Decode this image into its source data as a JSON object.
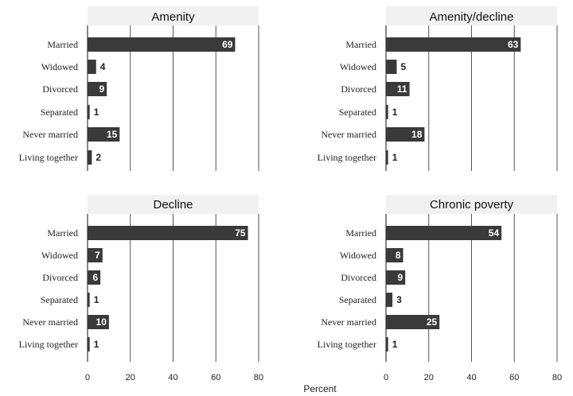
{
  "xlabel": "Percent",
  "chart_data": [
    {
      "type": "bar",
      "title": "Amenity",
      "categories": [
        "Married",
        "Widowed",
        "Divorced",
        "Separated",
        "Never married",
        "Living together"
      ],
      "values": [
        69,
        4,
        9,
        1,
        15,
        2
      ],
      "xlim": [
        0,
        80
      ],
      "xticks": [
        "0",
        "20",
        "40",
        "60",
        "80"
      ],
      "bar_color": "#3a3a3a"
    },
    {
      "type": "bar",
      "title": "Amenity/decline",
      "categories": [
        "Married",
        "Widowed",
        "Divorced",
        "Separated",
        "Never married",
        "Living together"
      ],
      "values": [
        63,
        5,
        11,
        1,
        18,
        1
      ],
      "xlim": [
        0,
        80
      ],
      "xticks": [
        "0",
        "20",
        "40",
        "60",
        "80"
      ],
      "bar_color": "#3a3a3a"
    },
    {
      "type": "bar",
      "title": "Decline",
      "categories": [
        "Married",
        "Widowed",
        "Divorced",
        "Separated",
        "Never married",
        "Living together"
      ],
      "values": [
        75,
        7,
        6,
        1,
        10,
        1
      ],
      "xlim": [
        0,
        80
      ],
      "xticks": [
        "0",
        "20",
        "40",
        "60",
        "80"
      ],
      "bar_color": "#3a3a3a"
    },
    {
      "type": "bar",
      "title": "Chronic poverty",
      "categories": [
        "Married",
        "Widowed",
        "Divorced",
        "Separated",
        "Never married",
        "Living together"
      ],
      "values": [
        54,
        8,
        9,
        3,
        25,
        1
      ],
      "xlim": [
        0,
        80
      ],
      "xticks": [
        "0",
        "20",
        "40",
        "60",
        "80"
      ],
      "bar_color": "#3a3a3a"
    }
  ]
}
